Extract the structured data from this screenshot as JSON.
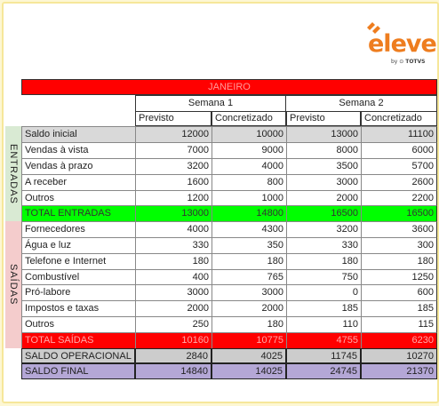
{
  "logo": {
    "brand": "eleve",
    "by": "by",
    "partner": "TOTVS"
  },
  "table": {
    "month": "JANEIRO",
    "weeks": [
      "Semana 1",
      "Semana 2"
    ],
    "subheaders": [
      "Previsto",
      "Concretizado",
      "Previsto",
      "Concretizado"
    ],
    "saldo_inicial": {
      "label": "Saldo inicial",
      "values": [
        "12000",
        "10000",
        "13000",
        "11100"
      ]
    },
    "entradas": {
      "group": "ENTRADAS",
      "rows": [
        {
          "label": "Vendas à vista",
          "values": [
            "7000",
            "9000",
            "8000",
            "6000"
          ]
        },
        {
          "label": "Vendas à prazo",
          "values": [
            "3200",
            "4000",
            "3500",
            "5700"
          ]
        },
        {
          "label": "A receber",
          "values": [
            "1600",
            "800",
            "3000",
            "2600"
          ]
        },
        {
          "label": "Outros",
          "values": [
            "1200",
            "1000",
            "2000",
            "2200"
          ]
        }
      ],
      "total": {
        "label": "TOTAL ENTRADAS",
        "values": [
          "13000",
          "14800",
          "16500",
          "16500"
        ]
      }
    },
    "saidas": {
      "group": "SAÍDAS",
      "rows": [
        {
          "label": "Fornecedores",
          "values": [
            "4000",
            "4300",
            "3200",
            "3600"
          ]
        },
        {
          "label": "Água e luz",
          "values": [
            "330",
            "350",
            "330",
            "300"
          ]
        },
        {
          "label": "Telefone e Internet",
          "values": [
            "180",
            "180",
            "180",
            "180"
          ]
        },
        {
          "label": "Combustível",
          "values": [
            "400",
            "765",
            "750",
            "1250"
          ]
        },
        {
          "label": "Pró-labore",
          "values": [
            "3000",
            "3000",
            "0",
            "600"
          ]
        },
        {
          "label": "Impostos e taxas",
          "values": [
            "2000",
            "2000",
            "185",
            "185"
          ]
        },
        {
          "label": "Outros",
          "values": [
            "250",
            "180",
            "110",
            "115"
          ]
        }
      ],
      "total": {
        "label": "TOTAL SAÍDAS",
        "values": [
          "10160",
          "10775",
          "4755",
          "6230"
        ]
      }
    },
    "saldo_operacional": {
      "label": "SALDO OPERACIONAL",
      "values": [
        "2840",
        "4025",
        "11745",
        "10270"
      ]
    },
    "saldo_final": {
      "label": "SALDO FINAL",
      "values": [
        "14840",
        "14025",
        "24745",
        "21370"
      ]
    }
  },
  "colors": {
    "month_bg": "#ff0000",
    "saldo_inicial_bg": "#d9d9d9",
    "entradas_side_bg": "#d9ead3",
    "total_entradas_bg": "#00ff00",
    "saidas_side_bg": "#f4cccc",
    "total_saidas_bg": "#ff0000",
    "saldo_operacional_bg": "#cccccc",
    "saldo_final_bg": "#b4a7d6",
    "brand_orange": "#ee7d1f"
  }
}
